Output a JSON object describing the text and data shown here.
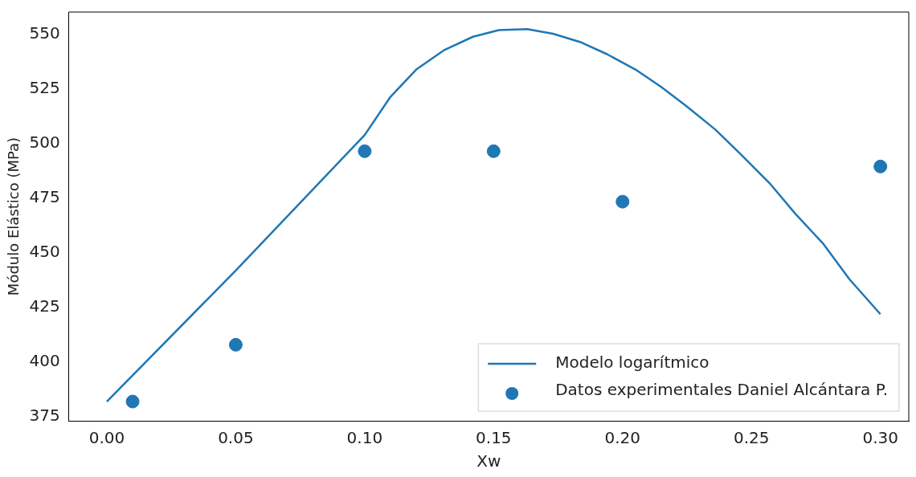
{
  "chart_data": {
    "type": "line",
    "xlabel": "Xw",
    "ylabel": "Módulo Elástico (MPa)",
    "xlim": [
      -0.0147,
      0.311
    ],
    "ylim": [
      373.2,
      560.3
    ],
    "xticks": [
      {
        "value": 0,
        "label": "0.00"
      },
      {
        "value": 0.05,
        "label": "0.05"
      },
      {
        "value": 0.1,
        "label": "0.10"
      },
      {
        "value": 0.15,
        "label": "0.15"
      },
      {
        "value": 0.2,
        "label": "0.20"
      },
      {
        "value": 0.25,
        "label": "0.25"
      },
      {
        "value": 0.3,
        "label": "0.30"
      }
    ],
    "yticks": [
      375,
      400,
      425,
      450,
      475,
      500,
      525,
      550
    ],
    "legend": "bottom right",
    "grid": false,
    "series": [
      {
        "name": "Modelo logarítmico",
        "color": "#1f77b4",
        "line_style": "solid",
        "x": [
          0,
          0.05,
          0.1,
          0.11,
          0.12,
          0.131,
          0.142,
          0.152,
          0.163,
          0.173,
          0.184,
          0.194,
          0.205,
          0.215,
          0.225,
          0.236,
          0.246,
          0.257,
          0.267,
          0.278,
          0.288,
          0.3
        ],
        "values": [
          382,
          442,
          504,
          521.5,
          534,
          543,
          549,
          552,
          552.5,
          550.4,
          546.4,
          541,
          534,
          526,
          517,
          506.5,
          495,
          482,
          468,
          454,
          438,
          422
        ]
      },
      {
        "name": "Datos experimentales Daniel Alcántara P.",
        "type": "scatter",
        "color": "#1f77b4",
        "marker": "circle",
        "x": [
          0.01,
          0.05,
          0.1,
          0.15,
          0.2,
          0.3
        ],
        "values": [
          382,
          408,
          496.6,
          496.6,
          473.5,
          489.6
        ]
      }
    ]
  }
}
